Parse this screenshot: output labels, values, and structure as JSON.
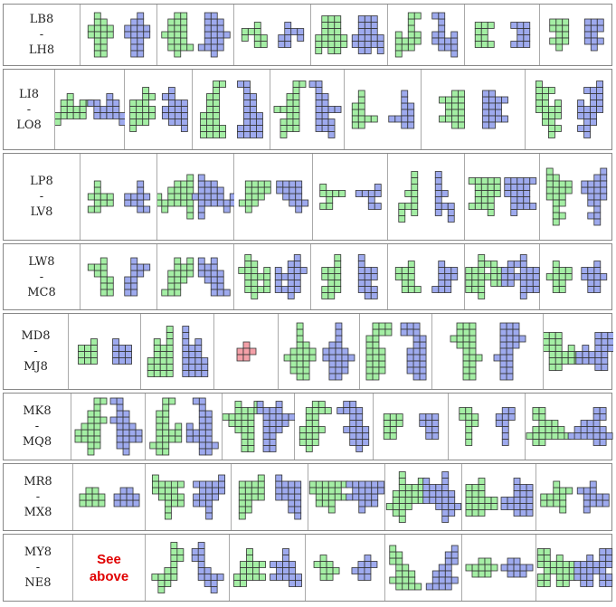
{
  "rows": [
    {
      "label": [
        "LB8",
        "-",
        "LH8"
      ]
    },
    {
      "label": [
        "LI8",
        "-",
        "LO8"
      ]
    },
    {
      "label": [
        "LP8",
        "-",
        "LV8"
      ]
    },
    {
      "label": [
        "LW8",
        "-",
        "MC8"
      ]
    },
    {
      "label": [
        "MD8",
        "-",
        "MJ8"
      ]
    },
    {
      "label": [
        "MK8",
        "-",
        "MQ8"
      ]
    },
    {
      "label": [
        "MR8",
        "-",
        "MX8"
      ]
    },
    {
      "label": [
        "MY8",
        "-",
        "NE8"
      ],
      "note": "See above"
    }
  ]
}
